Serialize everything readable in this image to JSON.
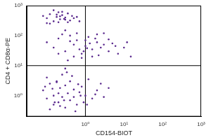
{
  "chart_data": {
    "type": "scatter",
    "x_label": "CD154-BIOT",
    "y_label": "CD4 + CD8α-PE",
    "x": [
      0.08,
      0.1,
      0.12,
      0.15,
      0.18,
      0.2,
      0.22,
      0.25,
      0.3,
      0.35,
      0.4,
      0.45,
      0.5,
      0.12,
      0.15,
      0.2,
      0.25,
      0.3,
      0.1,
      0.18,
      0.22,
      0.28,
      0.35,
      0.6,
      0.7,
      0.1,
      0.15,
      0.2,
      0.3,
      0.4,
      0.5,
      0.6,
      0.8,
      1,
      1.2,
      1.5,
      2,
      2.5,
      3,
      4,
      5,
      7,
      10,
      15,
      0.3,
      0.5,
      0.7,
      1,
      1.5,
      2,
      3,
      0.2,
      0.4,
      0.9,
      1.3,
      1.8,
      2.2,
      0.6,
      0.8,
      1.1,
      4,
      6,
      0.25,
      0.35,
      12,
      0.08,
      0.1,
      0.12,
      0.15,
      0.18,
      0.2,
      0.22,
      0.25,
      0.3,
      0.35,
      0.4,
      0.5,
      0.6,
      0.8,
      1,
      1.2,
      1.5,
      2,
      2.5,
      3,
      0.1,
      0.15,
      0.2,
      0.25,
      0.3,
      0.4,
      0.5,
      0.7,
      0.9,
      0.12,
      0.18,
      0.28,
      0.45,
      0.65,
      1.1,
      1.8,
      0.14,
      0.22,
      0.33,
      0.55,
      0.75,
      0.09,
      0.16,
      4,
      0.3
    ],
    "values": [
      450,
      380,
      520,
      300,
      420,
      600,
      350,
      480,
      400,
      550,
      320,
      450,
      380,
      250,
      700,
      280,
      620,
      340,
      260,
      500,
      440,
      360,
      280,
      420,
      300,
      60,
      40,
      80,
      30,
      100,
      50,
      70,
      25,
      45,
      90,
      35,
      60,
      40,
      120,
      30,
      55,
      25,
      40,
      20,
      150,
      20,
      35,
      70,
      20,
      110,
      50,
      25,
      65,
      30,
      55,
      80,
      22,
      120,
      18,
      38,
      75,
      45,
      110,
      15,
      60,
      1.5,
      0.8,
      2.5,
      1,
      3,
      0.6,
      1.8,
      0.9,
      2.2,
      1.2,
      0.7,
      1.6,
      0.5,
      2,
      1,
      3.5,
      0.8,
      1.5,
      2.5,
      0.9,
      4,
      0.5,
      1.2,
      5,
      0.4,
      3,
      0.9,
      1.3,
      0.6,
      0.35,
      2.8,
      0.7,
      4.5,
      2.4,
      0.5,
      1.1,
      1.7,
      0.45,
      6,
      0.3,
      1,
      2,
      0.6,
      1.8,
      8
    ],
    "color": "#5b2a8e",
    "marker": "circle",
    "log": true,
    "grid": false,
    "xlim": [
      0.03,
      1000
    ],
    "ylim": [
      0.2,
      1000
    ],
    "xticks": [
      {
        "value": 1,
        "label": "10⁰"
      },
      {
        "value": 10,
        "label": "10¹"
      },
      {
        "value": 100,
        "label": "10²"
      },
      {
        "value": 1000,
        "label": "10³"
      }
    ],
    "yticks": [
      {
        "value": 1,
        "label": "10⁰"
      },
      {
        "value": 10,
        "label": "10¹"
      },
      {
        "value": 100,
        "label": "10²"
      },
      {
        "value": 1000,
        "label": "10³"
      }
    ],
    "quadrant_x": 1,
    "quadrant_y": 10
  }
}
